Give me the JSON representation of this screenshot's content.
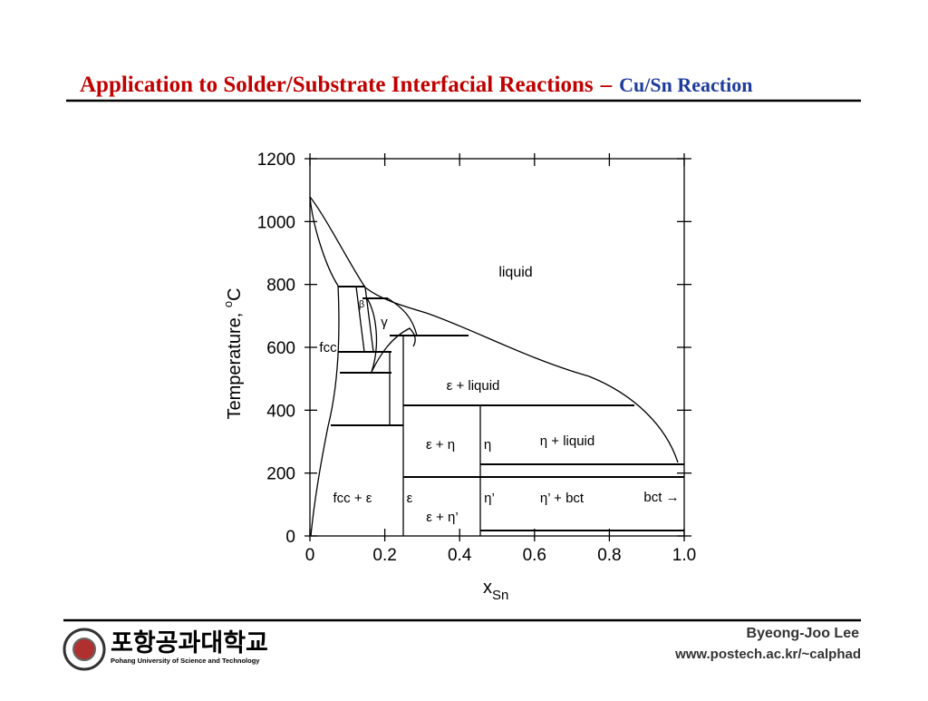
{
  "header": {
    "title": "Application to Solder/Substrate Interfacial Reactions",
    "dash": "–",
    "subtitle": "Cu/Sn Reaction"
  },
  "figure": {
    "y_label": "Temperature, ",
    "y_label_sup": "o",
    "y_label_unit": "C",
    "x_label": "x",
    "x_label_sub": "Sn",
    "y_ticks": [
      "0",
      "200",
      "400",
      "600",
      "800",
      "1000",
      "1200"
    ],
    "x_ticks": [
      "0",
      "0.2",
      "0.4",
      "0.6",
      "0.8",
      "1.0"
    ],
    "regions": [
      "liquid",
      "β",
      "γ",
      "fcc",
      "ε + liquid",
      "ε + η",
      "η",
      "η + liquid",
      "fcc + ε",
      "ε",
      "η’",
      "η’ + bct",
      "bct →",
      "ε + η’"
    ]
  },
  "footer": {
    "university_korean": "포항공과대학교",
    "university_english": "Pohang University of Science and Technology",
    "author": "Byeong-Joo Lee",
    "url": "www.postech.ac.kr/~calphad"
  }
}
